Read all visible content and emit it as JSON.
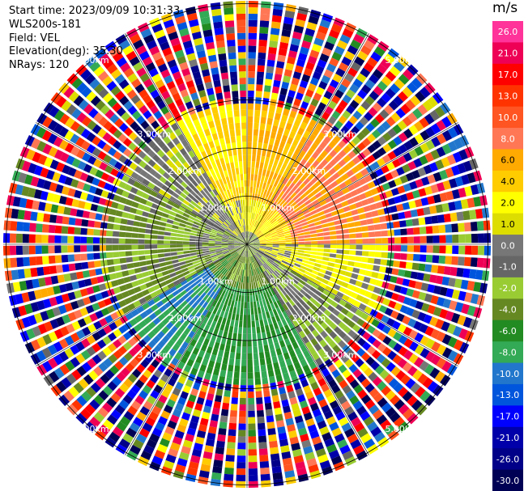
{
  "header": {
    "start_time": "Start time: 2023/09/09 10:31:33",
    "device": "WLS200s-181",
    "field": "Field: VEL",
    "elevation": "Elevation(deg): 35.30",
    "nrays": "NRays: 120"
  },
  "colorbar": {
    "unit": "m/s",
    "ticks": [
      "26.0",
      "21.0",
      "17.0",
      "13.0",
      "10.0",
      "8.0",
      "6.0",
      "4.0",
      "2.0",
      "1.0",
      "0.0",
      "-1.0",
      "-2.0",
      "-4.0",
      "-6.0",
      "-8.0",
      "-10.0",
      "-13.0",
      "-17.0",
      "-21.0",
      "-26.0",
      "-30.0"
    ],
    "colors": [
      "#ff3399",
      "#ee0055",
      "#ff0000",
      "#ff3300",
      "#ff5522",
      "#ff7755",
      "#ffaa00",
      "#ffcc00",
      "#ffff00",
      "#dddd00",
      "#777777",
      "#666666",
      "#99cc33",
      "#668822",
      "#228b22",
      "#33aa55",
      "#2277cc",
      "#0055dd",
      "#0000ff",
      "#0000aa",
      "#000088",
      "#000055"
    ]
  },
  "chart_data": {
    "type": "heatmap",
    "field": "VEL",
    "units": "m/s",
    "nrays": 120,
    "elevation_deg": 35.3,
    "range_rings_km": [
      1.0,
      2.0,
      3.0,
      5.0
    ],
    "ring_labels": [
      "1.00km",
      "2.00km",
      "3.00km",
      "5.00km"
    ],
    "value_range": [
      -30.0,
      26.0
    ],
    "coherent_region_max_km": 3.0,
    "sectors": [
      {
        "azimuth_deg": [
          0,
          30
        ],
        "dominant_velocity_ms": 6.0
      },
      {
        "azimuth_deg": [
          30,
          90
        ],
        "dominant_velocity_ms": 8.0
      },
      {
        "azimuth_deg": [
          90,
          120
        ],
        "dominant_velocity_ms": 2.0
      },
      {
        "azimuth_deg": [
          120,
          150
        ],
        "dominant_velocity_ms": -1.0
      },
      {
        "azimuth_deg": [
          150,
          210
        ],
        "dominant_velocity_ms": -6.0
      },
      {
        "azimuth_deg": [
          210,
          240
        ],
        "dominant_velocity_ms": -8.0
      },
      {
        "azimuth_deg": [
          240,
          300
        ],
        "dominant_velocity_ms": -2.0
      },
      {
        "azimuth_deg": [
          300,
          330
        ],
        "dominant_velocity_ms": 0.0
      },
      {
        "azimuth_deg": [
          330,
          360
        ],
        "dominant_velocity_ms": 4.0
      }
    ]
  }
}
